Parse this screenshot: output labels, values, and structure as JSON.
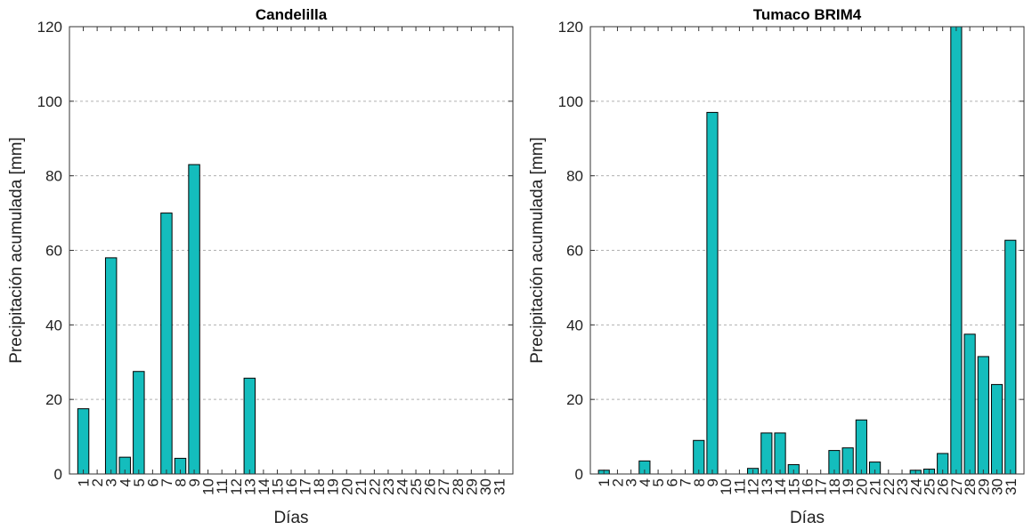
{
  "chart_data": [
    {
      "type": "bar",
      "title": "Candelilla",
      "xlabel": "Días",
      "ylabel": "Precipitación acumulada [mm]",
      "categories": [
        "1",
        "2",
        "3",
        "4",
        "5",
        "6",
        "7",
        "8",
        "9",
        "10",
        "11",
        "12",
        "13",
        "14",
        "15",
        "16",
        "17",
        "18",
        "19",
        "20",
        "21",
        "22",
        "23",
        "24",
        "25",
        "26",
        "27",
        "28",
        "29",
        "30",
        "31"
      ],
      "values": [
        17.5,
        0,
        58,
        4.5,
        27.5,
        0,
        70,
        4.2,
        83,
        0,
        0,
        0,
        25.7,
        0,
        0,
        0,
        0,
        0,
        0,
        0,
        0,
        0,
        0,
        0,
        0,
        0,
        0,
        0,
        0,
        0,
        0
      ],
      "color": "#14bdbd",
      "ylim": [
        0,
        120
      ],
      "yticks": [
        0,
        20,
        40,
        60,
        80,
        100,
        120
      ],
      "grid": true
    },
    {
      "type": "bar",
      "title": "Tumaco BRIM4",
      "xlabel": "Días",
      "ylabel": "Precipitación acumulada [mm]",
      "categories": [
        "1",
        "2",
        "3",
        "4",
        "5",
        "6",
        "7",
        "8",
        "9",
        "10",
        "11",
        "12",
        "13",
        "14",
        "15",
        "16",
        "17",
        "18",
        "19",
        "20",
        "21",
        "22",
        "23",
        "24",
        "25",
        "26",
        "27",
        "28",
        "29",
        "30",
        "31"
      ],
      "values": [
        1,
        0,
        0,
        3.5,
        0,
        0,
        0,
        9,
        97,
        0,
        0,
        1.5,
        11,
        11,
        2.5,
        0,
        0,
        6.3,
        7,
        14.5,
        3.2,
        0,
        0,
        1,
        1.3,
        5.5,
        120,
        37.5,
        31.5,
        24,
        62.7
      ],
      "color": "#14bdbd",
      "ylim": [
        0,
        120
      ],
      "yticks": [
        0,
        20,
        40,
        60,
        80,
        100,
        120
      ],
      "grid": true
    }
  ]
}
